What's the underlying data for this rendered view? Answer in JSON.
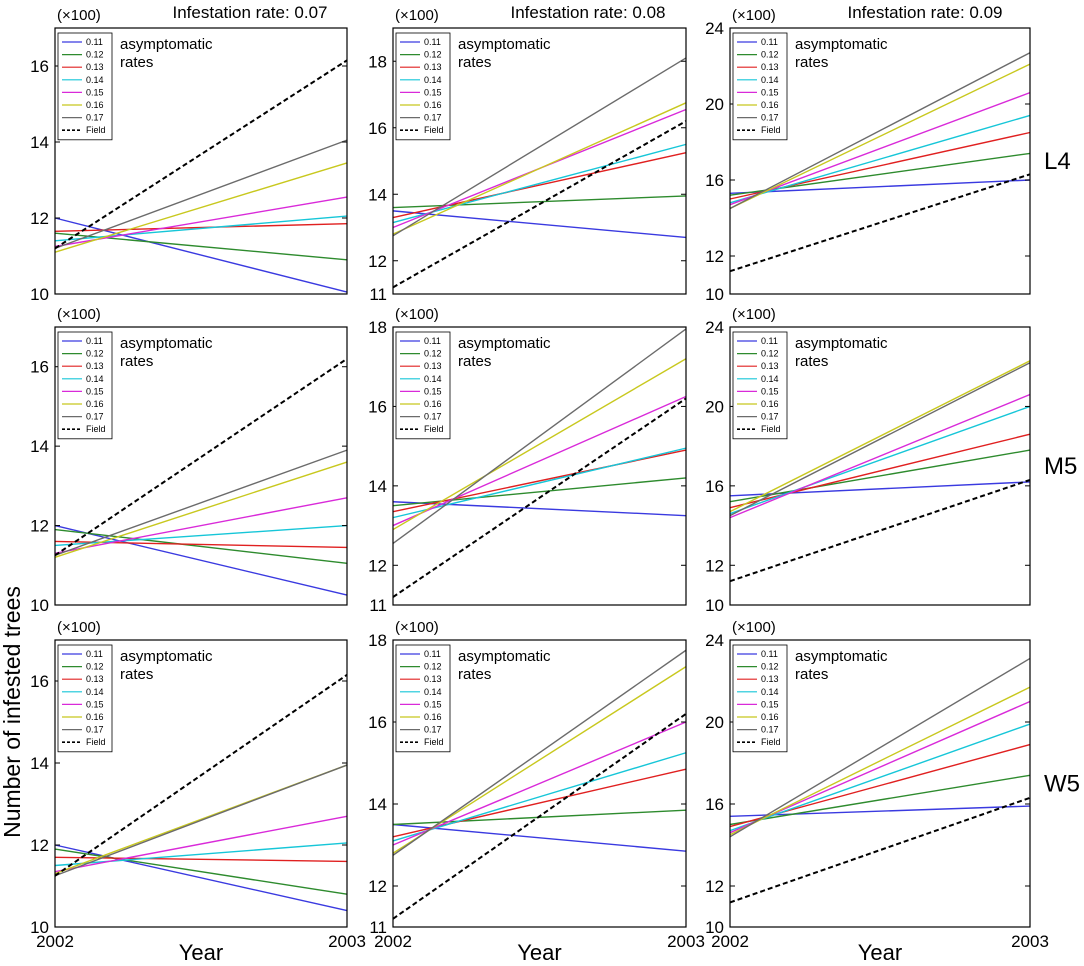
{
  "figure": {
    "ylabel": "Number of infested trees",
    "xlabel": "Year",
    "col_titles": [
      "Infestation rate: 0.07",
      "Infestation rate: 0.08",
      "Infestation rate: 0.09"
    ],
    "row_labels": [
      "L4",
      "M5",
      "W5"
    ],
    "scale_label": "(×100)",
    "legend_title": "asymptomatic\nrates",
    "legend_labels": [
      "0.11",
      "0.12",
      "0.13",
      "0.14",
      "0.15",
      "0.16",
      "0.17",
      "Field"
    ]
  },
  "colors": {
    "0.11": "#3a3ae0",
    "0.12": "#2e8b2e",
    "0.13": "#e02020",
    "0.14": "#16c6d8",
    "0.15": "#d92ad9",
    "0.16": "#c8c81e",
    "0.17": "#6b6b6b",
    "Field": "#000000"
  },
  "chart_data": [
    {
      "type": "line",
      "row": "L4",
      "infestation_rate": 0.07,
      "x": [
        2002,
        2003
      ],
      "ylim": [
        10,
        17
      ],
      "yticks": [
        10,
        12,
        14,
        16
      ],
      "scale": "(×100)",
      "series": [
        {
          "name": "0.11",
          "values": [
            12.0,
            10.05
          ]
        },
        {
          "name": "0.12",
          "values": [
            11.6,
            10.9
          ]
        },
        {
          "name": "0.13",
          "values": [
            11.65,
            11.85
          ]
        },
        {
          "name": "0.14",
          "values": [
            11.4,
            12.05
          ]
        },
        {
          "name": "0.15",
          "values": [
            11.25,
            12.55
          ]
        },
        {
          "name": "0.16",
          "values": [
            11.1,
            13.45
          ]
        },
        {
          "name": "0.17",
          "values": [
            11.2,
            14.05
          ]
        },
        {
          "name": "Field",
          "values": [
            11.2,
            16.15
          ]
        }
      ]
    },
    {
      "type": "line",
      "row": "L4",
      "infestation_rate": 0.08,
      "x": [
        2002,
        2003
      ],
      "ylim": [
        11,
        19
      ],
      "yticks": [
        11,
        12,
        14,
        16,
        18
      ],
      "scale": "(×100)",
      "series": [
        {
          "name": "0.11",
          "values": [
            13.5,
            12.7
          ]
        },
        {
          "name": "0.12",
          "values": [
            13.6,
            13.95
          ]
        },
        {
          "name": "0.13",
          "values": [
            13.3,
            15.25
          ]
        },
        {
          "name": "0.14",
          "values": [
            13.15,
            15.5
          ]
        },
        {
          "name": "0.15",
          "values": [
            13.0,
            16.55
          ]
        },
        {
          "name": "0.16",
          "values": [
            12.8,
            16.75
          ]
        },
        {
          "name": "0.17",
          "values": [
            12.75,
            18.1
          ]
        },
        {
          "name": "Field",
          "values": [
            11.2,
            16.2
          ]
        }
      ]
    },
    {
      "type": "line",
      "row": "L4",
      "infestation_rate": 0.09,
      "x": [
        2002,
        2003
      ],
      "ylim": [
        10,
        24
      ],
      "yticks": [
        10,
        12,
        16,
        20,
        24
      ],
      "scale": "(×100)",
      "series": [
        {
          "name": "0.11",
          "values": [
            15.3,
            16.0
          ]
        },
        {
          "name": "0.12",
          "values": [
            15.2,
            17.4
          ]
        },
        {
          "name": "0.13",
          "values": [
            15.0,
            18.5
          ]
        },
        {
          "name": "0.14",
          "values": [
            14.8,
            19.4
          ]
        },
        {
          "name": "0.15",
          "values": [
            14.7,
            20.6
          ]
        },
        {
          "name": "0.16",
          "values": [
            14.5,
            22.1
          ]
        },
        {
          "name": "0.17",
          "values": [
            14.5,
            22.7
          ]
        },
        {
          "name": "Field",
          "values": [
            11.2,
            16.3
          ]
        }
      ]
    },
    {
      "type": "line",
      "row": "M5",
      "infestation_rate": 0.07,
      "x": [
        2002,
        2003
      ],
      "ylim": [
        10,
        17
      ],
      "yticks": [
        10,
        12,
        14,
        16
      ],
      "scale": "(×100)",
      "series": [
        {
          "name": "0.11",
          "values": [
            12.0,
            10.25
          ]
        },
        {
          "name": "0.12",
          "values": [
            11.9,
            11.05
          ]
        },
        {
          "name": "0.13",
          "values": [
            11.6,
            11.45
          ]
        },
        {
          "name": "0.14",
          "values": [
            11.5,
            12.0
          ]
        },
        {
          "name": "0.15",
          "values": [
            11.3,
            12.7
          ]
        },
        {
          "name": "0.16",
          "values": [
            11.2,
            13.6
          ]
        },
        {
          "name": "0.17",
          "values": [
            11.25,
            13.9
          ]
        },
        {
          "name": "Field",
          "values": [
            11.25,
            16.2
          ]
        }
      ]
    },
    {
      "type": "line",
      "row": "M5",
      "infestation_rate": 0.08,
      "x": [
        2002,
        2003
      ],
      "ylim": [
        11,
        18
      ],
      "yticks": [
        11,
        12,
        14,
        16,
        18
      ],
      "scale": "(×100)",
      "series": [
        {
          "name": "0.11",
          "values": [
            13.6,
            13.25
          ]
        },
        {
          "name": "0.12",
          "values": [
            13.5,
            14.2
          ]
        },
        {
          "name": "0.13",
          "values": [
            13.35,
            14.9
          ]
        },
        {
          "name": "0.14",
          "values": [
            13.2,
            14.95
          ]
        },
        {
          "name": "0.15",
          "values": [
            13.0,
            16.25
          ]
        },
        {
          "name": "0.16",
          "values": [
            12.9,
            17.2
          ]
        },
        {
          "name": "0.17",
          "values": [
            12.55,
            17.95
          ]
        },
        {
          "name": "Field",
          "values": [
            11.2,
            16.2
          ]
        }
      ]
    },
    {
      "type": "line",
      "row": "M5",
      "infestation_rate": 0.09,
      "x": [
        2002,
        2003
      ],
      "ylim": [
        10,
        24
      ],
      "yticks": [
        10,
        12,
        16,
        20,
        24
      ],
      "scale": "(×100)",
      "series": [
        {
          "name": "0.11",
          "values": [
            15.5,
            16.2
          ]
        },
        {
          "name": "0.12",
          "values": [
            15.2,
            17.8
          ]
        },
        {
          "name": "0.13",
          "values": [
            14.9,
            18.6
          ]
        },
        {
          "name": "0.14",
          "values": [
            14.6,
            20.0
          ]
        },
        {
          "name": "0.15",
          "values": [
            14.4,
            20.6
          ]
        },
        {
          "name": "0.16",
          "values": [
            14.7,
            22.3
          ]
        },
        {
          "name": "0.17",
          "values": [
            14.5,
            22.2
          ]
        },
        {
          "name": "Field",
          "values": [
            11.2,
            16.3
          ]
        }
      ]
    },
    {
      "type": "line",
      "row": "W5",
      "infestation_rate": 0.07,
      "x": [
        2002,
        2003
      ],
      "ylim": [
        10,
        17
      ],
      "yticks": [
        10,
        12,
        14,
        16
      ],
      "scale": "(×100)",
      "series": [
        {
          "name": "0.11",
          "values": [
            12.0,
            10.4
          ]
        },
        {
          "name": "0.12",
          "values": [
            11.9,
            10.8
          ]
        },
        {
          "name": "0.13",
          "values": [
            11.7,
            11.6
          ]
        },
        {
          "name": "0.14",
          "values": [
            11.5,
            12.05
          ]
        },
        {
          "name": "0.15",
          "values": [
            11.35,
            12.7
          ]
        },
        {
          "name": "0.16",
          "values": [
            11.3,
            13.95
          ]
        },
        {
          "name": "0.17",
          "values": [
            11.25,
            13.95
          ]
        },
        {
          "name": "Field",
          "values": [
            11.25,
            16.15
          ]
        }
      ]
    },
    {
      "type": "line",
      "row": "W5",
      "infestation_rate": 0.08,
      "x": [
        2002,
        2003
      ],
      "ylim": [
        11,
        18
      ],
      "yticks": [
        11,
        12,
        14,
        16,
        18
      ],
      "scale": "(×100)",
      "series": [
        {
          "name": "0.11",
          "values": [
            13.5,
            12.85
          ]
        },
        {
          "name": "0.12",
          "values": [
            13.5,
            13.85
          ]
        },
        {
          "name": "0.13",
          "values": [
            13.2,
            14.85
          ]
        },
        {
          "name": "0.14",
          "values": [
            13.1,
            15.25
          ]
        },
        {
          "name": "0.15",
          "values": [
            13.0,
            16.0
          ]
        },
        {
          "name": "0.16",
          "values": [
            12.8,
            17.35
          ]
        },
        {
          "name": "0.17",
          "values": [
            12.75,
            17.75
          ]
        },
        {
          "name": "Field",
          "values": [
            11.2,
            16.2
          ]
        }
      ]
    },
    {
      "type": "line",
      "row": "W5",
      "infestation_rate": 0.09,
      "x": [
        2002,
        2003
      ],
      "ylim": [
        10,
        24
      ],
      "yticks": [
        10,
        12,
        16,
        20,
        24
      ],
      "scale": "(×100)",
      "series": [
        {
          "name": "0.11",
          "values": [
            15.4,
            15.9
          ]
        },
        {
          "name": "0.12",
          "values": [
            15.0,
            17.4
          ]
        },
        {
          "name": "0.13",
          "values": [
            14.9,
            18.9
          ]
        },
        {
          "name": "0.14",
          "values": [
            14.7,
            19.9
          ]
        },
        {
          "name": "0.15",
          "values": [
            14.6,
            21.0
          ]
        },
        {
          "name": "0.16",
          "values": [
            14.5,
            21.7
          ]
        },
        {
          "name": "0.17",
          "values": [
            14.4,
            23.1
          ]
        },
        {
          "name": "Field",
          "values": [
            11.2,
            16.3
          ]
        }
      ]
    }
  ]
}
